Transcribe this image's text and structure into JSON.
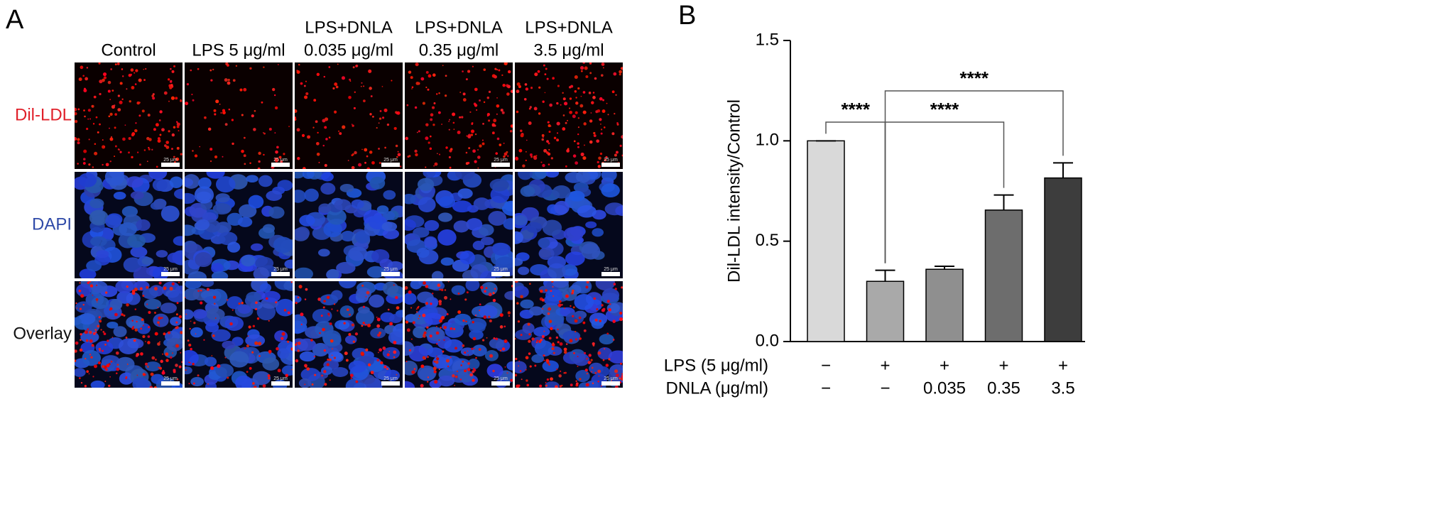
{
  "panel_a": {
    "label": "A",
    "columns": [
      [
        "Control"
      ],
      [
        "LPS 5 μg/ml"
      ],
      [
        "LPS+DNLA",
        "0.035 μg/ml"
      ],
      [
        "LPS+DNLA",
        "0.35 μg/ml"
      ],
      [
        "LPS+DNLA",
        "3.5 μg/ml"
      ]
    ],
    "rows": [
      "Dil-LDL",
      "DAPI",
      "Overlay"
    ],
    "scale_bar": "25 μm"
  },
  "chart_data": {
    "type": "bar",
    "label": "B",
    "y_label": "Dil-LDL intensity/Control",
    "categories": [
      null,
      null,
      null,
      null,
      null
    ],
    "values": [
      1.0,
      0.3,
      0.36,
      0.655,
      0.815
    ],
    "errors": [
      0,
      0.055,
      0.015,
      0.075,
      0.075
    ],
    "colors": [
      "#d9d9d9",
      "#a9a9a9",
      "#8f8f8f",
      "#6d6d6d",
      "#3d3d3d"
    ],
    "ylim": [
      0,
      1.5
    ],
    "yticks": [
      {
        "value": 0,
        "label": "0.0"
      },
      {
        "value": 0.5,
        "label": "0.5"
      },
      {
        "value": 1,
        "label": "1.0"
      },
      {
        "value": 1.5,
        "label": "1.5"
      }
    ],
    "condition_rows": [
      {
        "label": "LPS (5 μg/ml)",
        "values": [
          "−",
          "+",
          "+",
          "+",
          "+"
        ]
      },
      {
        "label": "DNLA (μg/ml)",
        "values": [
          "−",
          "−",
          "0.035",
          "0.35",
          "3.5"
        ]
      }
    ],
    "annotations": [
      {
        "from": 0,
        "to": 1,
        "label": "****"
      },
      {
        "from": 1,
        "to": 3,
        "label": "****"
      },
      {
        "from": 1,
        "to": 4,
        "label": "****"
      }
    ]
  }
}
